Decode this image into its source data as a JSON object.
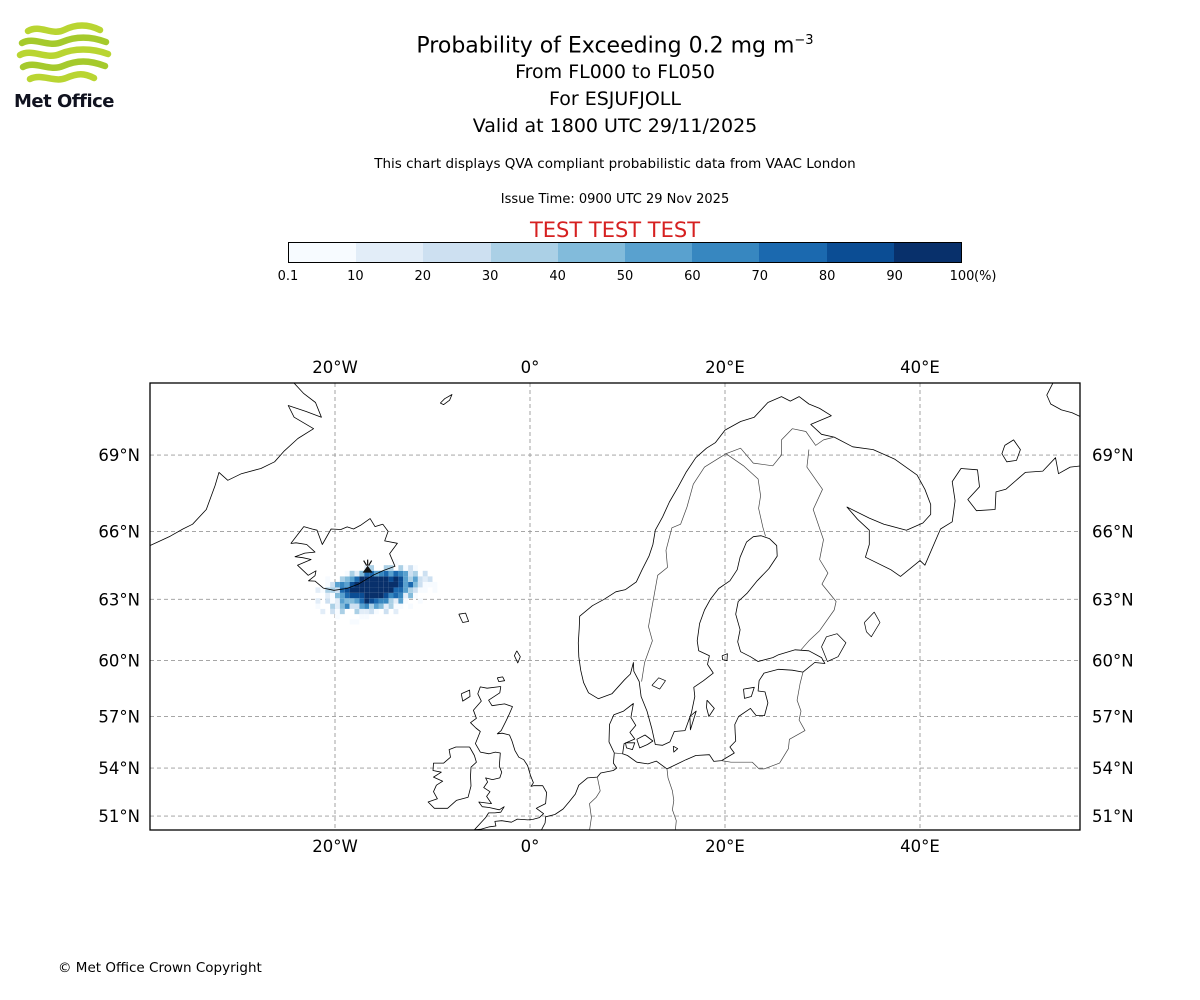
{
  "logo": {
    "brand": "Met Office",
    "wave_color": "#b9d532",
    "wave_color_alt": "#a5ca2c"
  },
  "header": {
    "title_main": "Probability of Exceeding 0.2 mg m",
    "title_sup": "−3",
    "subtitle1": "From FL000 to FL050",
    "subtitle2": "For ESJUFJOLL",
    "subtitle3": "Valid at 1800 UTC 29/11/2025",
    "disclaimer": "This chart displays QVA compliant probabilistic data from VAAC London",
    "issue_time": "Issue Time: 0900 UTC 29 Nov 2025",
    "test_banner": "TEST TEST TEST",
    "test_color": "#d62020"
  },
  "colorbar": {
    "tick_labels": [
      "0.1",
      "10",
      "20",
      "30",
      "40",
      "50",
      "60",
      "70",
      "80",
      "90",
      "100"
    ],
    "unit_label": "(%)",
    "colors": [
      "#f7fbff",
      "#e2edf8",
      "#cde0f1",
      "#abd0e6",
      "#82bbdb",
      "#59a1cf",
      "#3787c0",
      "#1b69af",
      "#0b4d94",
      "#08306b"
    ]
  },
  "map": {
    "lon_ticks": [
      {
        "label": "20°W",
        "lon": -20
      },
      {
        "label": "0°",
        "lon": 0
      },
      {
        "label": "20°E",
        "lon": 20
      },
      {
        "label": "40°E",
        "lon": 40
      }
    ],
    "lat_ticks": [
      {
        "label": "69°N",
        "lat": 69
      },
      {
        "label": "66°N",
        "lat": 66
      },
      {
        "label": "63°N",
        "lat": 63
      },
      {
        "label": "60°N",
        "lat": 60
      },
      {
        "label": "57°N",
        "lat": 57
      },
      {
        "label": "54°N",
        "lat": 54
      },
      {
        "label": "51°N",
        "lat": 51
      }
    ]
  },
  "chart_data": {
    "type": "heatmap",
    "title": "Probability of Exceeding 0.2 mg m−3, FL000–FL050, ESJUFJOLL, valid 1800 UTC 29/11/2025",
    "units": "%",
    "levels_pct": [
      0.1,
      10,
      20,
      30,
      40,
      50,
      60,
      70,
      80,
      90,
      100
    ],
    "extent": {
      "lon_min": -39,
      "lon_max": 56.4,
      "lat_min": 50.1,
      "lat_max": 71.5
    },
    "plume": {
      "center_lon": -15.8,
      "center_lat": 63.65,
      "rx90_deg": 2.3,
      "ry90_deg": 0.62,
      "falloff_exponent": 4,
      "north_compression": 1.6,
      "tilt": 1.2,
      "cell_size_lon_deg": 0.5,
      "cell_size_lat_deg": 0.25,
      "grid_lon": [
        -22.5,
        -9.5
      ],
      "grid_lat": [
        61.8,
        65.3
      ]
    },
    "volcano": {
      "name": "ESJUFJOLL",
      "lon": -16.65,
      "lat": 64.4
    }
  },
  "footer": {
    "copyright": "© Met Office Crown Copyright"
  }
}
